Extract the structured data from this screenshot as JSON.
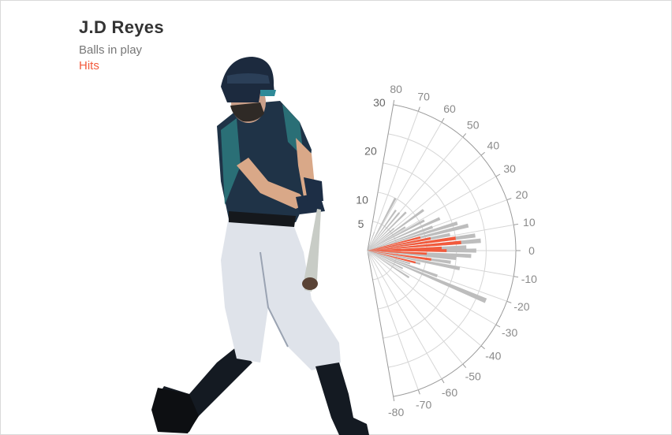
{
  "player": {
    "name": "J.D Reyes"
  },
  "legend": {
    "balls": "Balls in play",
    "hits": "Hits"
  },
  "colors": {
    "balls": "#bdbdbd",
    "hits": "#f25a3c",
    "grid": "#d6d6d6",
    "axis": "#9a9a9a"
  },
  "chart_data": {
    "type": "radial-bar",
    "angle_axis": {
      "min": -80,
      "max": 80,
      "ticks": [
        -80,
        -70,
        -60,
        -50,
        -40,
        -30,
        -20,
        -10,
        0,
        10,
        20,
        30,
        40,
        50,
        60,
        70,
        80
      ]
    },
    "radial_axis": {
      "min": 0,
      "max": 30,
      "ticks": [
        5,
        10,
        20,
        30
      ]
    },
    "series": [
      {
        "name": "Balls in play",
        "color": "#bdbdbd",
        "points": [
          {
            "angle": 70,
            "value": 4
          },
          {
            "angle": 62,
            "value": 12
          },
          {
            "angle": 55,
            "value": 10
          },
          {
            "angle": 50,
            "value": 10
          },
          {
            "angle": 45,
            "value": 11
          },
          {
            "angle": 40,
            "value": 7
          },
          {
            "angle": 36,
            "value": 14
          },
          {
            "angle": 32,
            "value": 9
          },
          {
            "angle": 28,
            "value": 13
          },
          {
            "angle": 24,
            "value": 16
          },
          {
            "angle": 20,
            "value": 14
          },
          {
            "angle": 17,
            "value": 19
          },
          {
            "angle": 14,
            "value": 21
          },
          {
            "angle": 11,
            "value": 17
          },
          {
            "angle": 8,
            "value": 22
          },
          {
            "angle": 5,
            "value": 23
          },
          {
            "angle": 2,
            "value": 20
          },
          {
            "angle": 0,
            "value": 22
          },
          {
            "angle": -3,
            "value": 21
          },
          {
            "angle": -5,
            "value": 18
          },
          {
            "angle": -8,
            "value": 17
          },
          {
            "angle": -11,
            "value": 19
          },
          {
            "angle": -14,
            "value": 11
          },
          {
            "angle": -17,
            "value": 9
          },
          {
            "angle": -20,
            "value": 15
          },
          {
            "angle": -23,
            "value": 26
          },
          {
            "angle": -27,
            "value": 8
          },
          {
            "angle": -33,
            "value": 10
          }
        ]
      },
      {
        "name": "Hits",
        "color": "#f25a3c",
        "points": [
          {
            "angle": 14,
            "value": 11
          },
          {
            "angle": 11,
            "value": 13
          },
          {
            "angle": 8,
            "value": 18
          },
          {
            "angle": 5,
            "value": 19
          },
          {
            "angle": 2,
            "value": 15
          },
          {
            "angle": 0,
            "value": 16
          },
          {
            "angle": -3,
            "value": 12
          },
          {
            "angle": -8,
            "value": 13
          },
          {
            "angle": -14,
            "value": 10
          }
        ]
      }
    ]
  }
}
